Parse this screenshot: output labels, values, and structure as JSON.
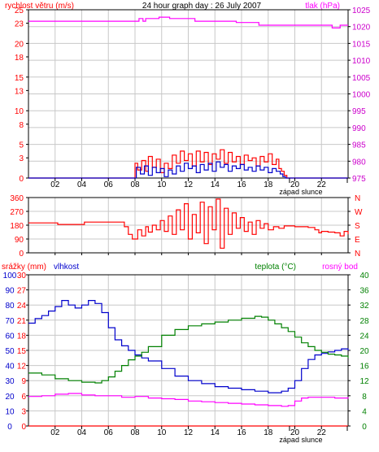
{
  "chart_data": [
    {
      "type": "line",
      "title": "24 hour graph day : 26 July 2007",
      "left_axis_label": "rychlost větru (m/s)",
      "right_axis_label": "tlak (hPa)",
      "x_ticks": [
        "02",
        "04",
        "06",
        "08",
        "10",
        "12",
        "14",
        "16",
        "18",
        "20",
        "22"
      ],
      "x_annotation": "západ slunce",
      "xlim": [
        0,
        24
      ],
      "ylim_left": [
        0,
        25
      ],
      "yticks_left": [
        0,
        3,
        5,
        8,
        10,
        13,
        15,
        18,
        20,
        23,
        25
      ],
      "ylim_right": [
        975,
        1025
      ],
      "yticks_right": [
        975,
        980,
        985,
        990,
        995,
        1000,
        1005,
        1010,
        1015,
        1020,
        1025
      ],
      "grid": true,
      "series": [
        {
          "color": "#ff00ff",
          "axis": "right",
          "x": [
            0,
            8.1,
            8.3,
            8.6,
            8.8,
            9.6,
            9.8,
            10.4,
            10.6,
            12.3,
            12.5,
            15.4,
            15.6,
            17.1,
            17.3,
            22.6,
            22.8,
            23.2,
            23.4,
            24
          ],
          "y": [
            1021.6,
            1021.6,
            1022.4,
            1021.6,
            1022.4,
            1022.4,
            1022.8,
            1022.8,
            1022.4,
            1022.4,
            1021.6,
            1021.6,
            1021.2,
            1021.2,
            1020.4,
            1020.4,
            1019.6,
            1019.6,
            1020.4,
            1020.4
          ]
        },
        {
          "color": "#ff0000",
          "axis": "left",
          "x": [
            0,
            7.8,
            8.0,
            8.2,
            8.5,
            8.8,
            9.0,
            9.3,
            9.6,
            9.9,
            10.2,
            10.5,
            10.8,
            11.1,
            11.4,
            11.7,
            12.0,
            12.3,
            12.6,
            12.9,
            13.2,
            13.5,
            13.8,
            14.1,
            14.4,
            14.7,
            15.0,
            15.3,
            15.6,
            15.9,
            16.2,
            16.5,
            16.8,
            17.1,
            17.4,
            17.7,
            18.0,
            18.3,
            18.6,
            18.8,
            19.0,
            19.2,
            19.4,
            24
          ],
          "y": [
            0,
            0,
            2.2,
            1.2,
            2.6,
            1.0,
            3.2,
            1.6,
            2.8,
            0.8,
            2.2,
            1.4,
            3.4,
            2.2,
            4.0,
            2.6,
            3.6,
            1.8,
            4.0,
            2.4,
            3.8,
            2.0,
            3.6,
            2.8,
            4.2,
            2.2,
            3.8,
            2.4,
            3.2,
            2.0,
            3.4,
            2.6,
            3.0,
            1.8,
            3.2,
            2.4,
            3.6,
            2.0,
            2.8,
            1.4,
            1.0,
            0.4,
            0,
            0
          ]
        },
        {
          "color": "#0000cc",
          "axis": "left",
          "x": [
            0,
            7.9,
            8.1,
            8.4,
            8.7,
            9.0,
            9.3,
            9.6,
            9.9,
            10.2,
            10.5,
            10.8,
            11.1,
            11.4,
            11.7,
            12.0,
            12.3,
            12.6,
            12.9,
            13.2,
            13.5,
            13.8,
            14.1,
            14.4,
            14.7,
            15.0,
            15.3,
            15.6,
            15.9,
            16.2,
            16.5,
            16.8,
            17.1,
            17.4,
            17.7,
            18.0,
            18.3,
            18.6,
            18.9,
            19.1,
            19.3,
            24
          ],
          "y": [
            0,
            0,
            1.6,
            0.6,
            1.8,
            0.4,
            1.6,
            0.8,
            1.4,
            0.2,
            1.2,
            0.6,
            1.8,
            1.0,
            2.2,
            1.4,
            1.8,
            0.8,
            2.0,
            1.2,
            2.2,
            1.0,
            2.4,
            1.6,
            2.0,
            1.0,
            1.8,
            1.4,
            2.0,
            1.2,
            1.6,
            1.0,
            1.8,
            1.2,
            1.6,
            0.8,
            1.4,
            1.0,
            0.6,
            0.2,
            0,
            0
          ]
        }
      ]
    },
    {
      "type": "line",
      "ylim_left": [
        0,
        360
      ],
      "yticks_left": [
        0,
        90,
        180,
        270,
        360
      ],
      "right_labels": [
        "N",
        "W",
        "S",
        "E",
        "N"
      ],
      "xlim": [
        0,
        24
      ],
      "grid": true,
      "series": [
        {
          "color": "#ff0000",
          "x": [
            0,
            2.0,
            2.2,
            4.0,
            4.2,
            7.0,
            7.2,
            7.5,
            7.8,
            8.2,
            8.5,
            8.8,
            9.0,
            9.3,
            9.6,
            9.9,
            10.2,
            10.5,
            10.8,
            11.1,
            11.4,
            11.7,
            12.0,
            12.3,
            12.6,
            12.9,
            13.2,
            13.5,
            13.8,
            14.1,
            14.4,
            14.7,
            15.0,
            15.3,
            15.6,
            15.9,
            16.2,
            16.5,
            16.8,
            17.1,
            17.4,
            17.7,
            18.0,
            18.4,
            18.8,
            19.2,
            20.0,
            21.0,
            21.5,
            21.8,
            22.0,
            22.5,
            23.0,
            23.4,
            23.7,
            24
          ],
          "y": [
            195,
            195,
            185,
            185,
            200,
            200,
            170,
            120,
            90,
            150,
            110,
            170,
            135,
            180,
            150,
            210,
            140,
            240,
            120,
            280,
            150,
            320,
            90,
            250,
            130,
            330,
            60,
            300,
            150,
            350,
            30,
            290,
            120,
            260,
            160,
            230,
            140,
            200,
            120,
            210,
            160,
            190,
            150,
            170,
            160,
            175,
            170,
            165,
            150,
            130,
            140,
            135,
            130,
            110,
            140,
            120
          ]
        }
      ]
    },
    {
      "type": "line",
      "left_label_1": "srážky (mm)",
      "left_label_2": "vlhkost",
      "right_label_1": "teplota (°C)",
      "right_label_2": "rosný bod",
      "x_ticks": [
        "02",
        "04",
        "06",
        "08",
        "10",
        "12",
        "14",
        "16",
        "18",
        "20",
        "22"
      ],
      "x_annotation": "západ slunce",
      "xlim": [
        0,
        24
      ],
      "ylim_left_outer": [
        0,
        100
      ],
      "yticks_left_outer": [
        0,
        10,
        20,
        30,
        40,
        50,
        60,
        70,
        80,
        90,
        100
      ],
      "ylim_left_inner": [
        0,
        30
      ],
      "yticks_left_inner": [
        0,
        3,
        6,
        9,
        12,
        15,
        18,
        21,
        24,
        27,
        30
      ],
      "ylim_right": [
        0,
        40
      ],
      "yticks_right": [
        0,
        4,
        8,
        12,
        16,
        20,
        24,
        28,
        32,
        36,
        40
      ],
      "grid": true,
      "series": [
        {
          "color": "#0000cc",
          "axis": "left_outer",
          "x": [
            0,
            0.5,
            1.0,
            1.5,
            2.0,
            2.5,
            3.0,
            3.5,
            4.0,
            4.5,
            5.0,
            5.5,
            6.0,
            6.5,
            7.0,
            7.5,
            8.0,
            8.5,
            9.0,
            10.0,
            11.0,
            12.0,
            13.0,
            14.0,
            15.0,
            16.0,
            17.0,
            18.0,
            18.5,
            19.0,
            19.5,
            20.0,
            20.5,
            21.0,
            21.5,
            22.0,
            22.5,
            23.0,
            23.5,
            24
          ],
          "y": [
            68,
            71,
            73,
            76,
            79,
            83,
            80,
            78,
            80,
            83,
            81,
            75,
            65,
            57,
            53,
            50,
            47,
            45,
            43,
            38,
            33,
            30,
            28,
            26,
            25,
            24,
            23,
            22,
            22,
            23,
            25,
            30,
            38,
            44,
            47,
            48,
            49,
            50,
            51,
            50
          ]
        },
        {
          "color": "#008000",
          "axis": "right",
          "x": [
            0,
            1.0,
            2.0,
            3.0,
            4.0,
            5.0,
            5.5,
            6.0,
            6.5,
            7.0,
            7.5,
            8.0,
            8.5,
            9.0,
            10.0,
            11.0,
            12.0,
            13.0,
            14.0,
            15.0,
            16.0,
            17.0,
            17.5,
            18.0,
            18.5,
            19.0,
            19.5,
            20.0,
            20.5,
            21.0,
            21.5,
            22.0,
            22.5,
            23.0,
            23.5,
            24
          ],
          "y": [
            14.0,
            13.5,
            12.5,
            12.0,
            11.6,
            11.4,
            12.0,
            13.0,
            14.5,
            16.0,
            17.5,
            18.5,
            19.5,
            21.0,
            24.0,
            25.5,
            26.5,
            27.0,
            27.5,
            28.0,
            28.5,
            29.0,
            28.8,
            28.0,
            27.0,
            26.0,
            25.0,
            23.5,
            22.0,
            21.0,
            20.0,
            19.5,
            19.0,
            18.8,
            18.5,
            18.0
          ]
        },
        {
          "color": "#ff00ff",
          "axis": "right",
          "x": [
            0,
            1.0,
            2.0,
            3.0,
            4.0,
            5.0,
            6.0,
            7.0,
            8.0,
            9.0,
            10.0,
            11.0,
            12.0,
            13.0,
            14.0,
            15.0,
            16.0,
            17.0,
            18.0,
            19.0,
            19.5,
            20.0,
            20.5,
            21.0,
            22.0,
            23.0,
            24
          ],
          "y": [
            7.8,
            8.0,
            8.4,
            8.6,
            8.2,
            8.0,
            8.0,
            7.6,
            7.8,
            7.4,
            7.2,
            7.0,
            6.6,
            6.4,
            6.2,
            6.0,
            5.8,
            5.6,
            5.4,
            5.2,
            5.4,
            6.6,
            7.4,
            7.6,
            7.6,
            7.4,
            7.6
          ]
        },
        {
          "color": "#ff0000",
          "axis": "left_inner",
          "x": [
            0,
            24
          ],
          "y": [
            0,
            0
          ]
        }
      ]
    }
  ]
}
